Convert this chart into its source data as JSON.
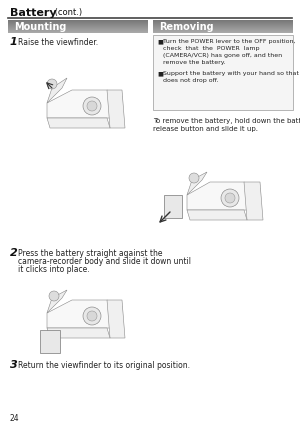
{
  "page_bg": "#ffffff",
  "title_bold": "Battery",
  "title_suffix": " (cont.)",
  "section_left_label": "Mounting",
  "section_right_label": "Removing",
  "section_bar_color": "#888888",
  "section_bar_gradient_start": "#aaaaaa",
  "section_bar_gradient_end": "#666666",
  "section_bar_text_color": "#ffffff",
  "step1_num": "1",
  "step1_text": "Raise the viewfinder.",
  "step2_num": "2",
  "step2_text_line1": "Press the battery straight against the",
  "step2_text_line2": "camera-recorder body and slide it down until",
  "step2_text_line3": "it clicks into place.",
  "step3_num": "3",
  "step3_text": "Return the viewfinder to its original position.",
  "bullet1_line1": "Turn the POWER lever to the OFF position,",
  "bullet1_line2": "check  that  the  POWER  lamp",
  "bullet1_line3": "(CAMERA/VCR) has gone off, and then",
  "bullet1_line4": "remove the battery.",
  "bullet2_line1": "Support the battery with your hand so that it",
  "bullet2_line2": "does not drop off.",
  "remove_line1": "To remove the battery, hold down the battery",
  "remove_line2": "release button and slide it up.",
  "page_num": "24",
  "divider_color": "#555555",
  "bullet_box_border": "#888888",
  "body_text_color": "#222222",
  "title_color": "#111111"
}
